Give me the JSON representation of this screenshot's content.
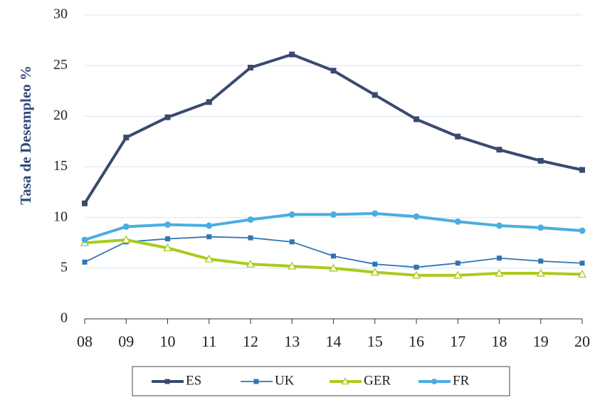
{
  "chart_data": {
    "type": "line",
    "ylabel": "Tasa de Desempleo %",
    "categories": [
      "08",
      "09",
      "10",
      "11",
      "12",
      "13",
      "14",
      "15",
      "16",
      "17",
      "18",
      "19",
      "20"
    ],
    "series": [
      {
        "name": "ES",
        "color": "#3a4a6e",
        "marker": "square",
        "values": [
          11.4,
          17.9,
          19.9,
          21.4,
          24.8,
          26.1,
          24.5,
          22.1,
          19.7,
          18.0,
          16.7,
          15.6,
          14.7
        ]
      },
      {
        "name": "UK",
        "color": "#2e75b6",
        "marker": "square",
        "values": [
          5.6,
          7.6,
          7.9,
          8.1,
          8.0,
          7.6,
          6.2,
          5.4,
          5.1,
          5.5,
          6.0,
          5.7,
          5.5
        ]
      },
      {
        "name": "GER",
        "color": "#a8cc1c",
        "marker": "triangle",
        "values": [
          7.5,
          7.8,
          7.0,
          5.9,
          5.4,
          5.2,
          5.0,
          4.6,
          4.3,
          4.3,
          4.5,
          4.5,
          4.4
        ]
      },
      {
        "name": "FR",
        "color": "#4aaee0",
        "marker": "circle",
        "values": [
          7.8,
          9.1,
          9.3,
          9.2,
          9.8,
          10.3,
          10.3,
          10.4,
          10.1,
          9.6,
          9.2,
          9.0,
          8.7
        ]
      }
    ],
    "ylim": [
      0,
      30
    ],
    "yticks": [
      0,
      5,
      10,
      15,
      20,
      25,
      30
    ],
    "grid": true,
    "legend": "bottom"
  }
}
